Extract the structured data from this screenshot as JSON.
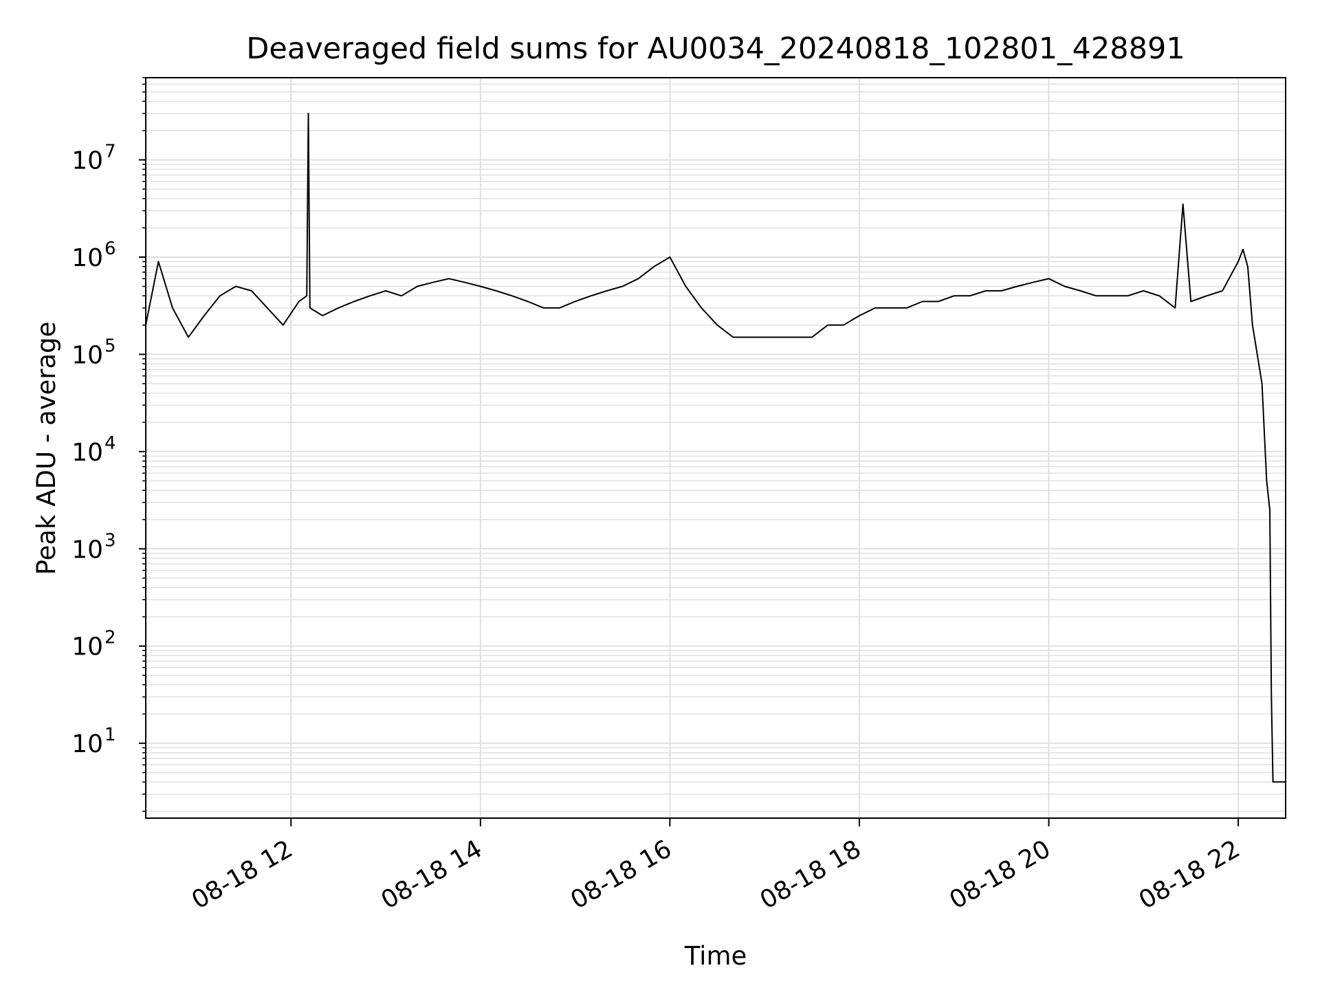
{
  "chart_data": {
    "type": "line",
    "title": "Deaveraged field sums for AU0034_20240818_102801_428891",
    "xlabel": "Time",
    "ylabel": "Peak ADU - average",
    "yscale": "log",
    "grid": true,
    "legend": "none",
    "line_color": "#000000",
    "grid_color": "#e0e0e0",
    "xlim": [
      "08-18 10:28",
      "08-18 22:30"
    ],
    "ylim": [
      1.7,
      70000000
    ],
    "x_ticks": [
      {
        "time": "08-18 12:00",
        "label": "08-18 12"
      },
      {
        "time": "08-18 14:00",
        "label": "08-18 14"
      },
      {
        "time": "08-18 16:00",
        "label": "08-18 16"
      },
      {
        "time": "08-18 18:00",
        "label": "08-18 18"
      },
      {
        "time": "08-18 20:00",
        "label": "08-18 20"
      },
      {
        "time": "08-18 22:00",
        "label": "08-18 22"
      }
    ],
    "y_ticks": [
      {
        "value": 10,
        "base": "10",
        "exp": "1"
      },
      {
        "value": 100,
        "base": "10",
        "exp": "2"
      },
      {
        "value": 1000,
        "base": "10",
        "exp": "3"
      },
      {
        "value": 10000,
        "base": "10",
        "exp": "4"
      },
      {
        "value": 100000,
        "base": "10",
        "exp": "5"
      },
      {
        "value": 1000000,
        "base": "10",
        "exp": "6"
      },
      {
        "value": 10000000,
        "base": "10",
        "exp": "7"
      }
    ],
    "series": [
      {
        "x": [
          "08-18 10:28",
          "08-18 10:36",
          "08-18 10:45",
          "08-18 10:55",
          "08-18 11:05",
          "08-18 11:15",
          "08-18 11:25",
          "08-18 11:35",
          "08-18 11:45",
          "08-18 11:55",
          "08-18 12:05",
          "08-18 12:10",
          "08-18 12:11",
          "08-18 12:12",
          "08-18 12:20",
          "08-18 12:30",
          "08-18 12:40",
          "08-18 12:50",
          "08-18 13:00",
          "08-18 13:10",
          "08-18 13:20",
          "08-18 13:30",
          "08-18 13:40",
          "08-18 13:50",
          "08-18 14:00",
          "08-18 14:10",
          "08-18 14:20",
          "08-18 14:30",
          "08-18 14:40",
          "08-18 14:50",
          "08-18 15:00",
          "08-18 15:10",
          "08-18 15:20",
          "08-18 15:30",
          "08-18 15:40",
          "08-18 15:50",
          "08-18 16:00",
          "08-18 16:10",
          "08-18 16:20",
          "08-18 16:30",
          "08-18 16:40",
          "08-18 16:50",
          "08-18 17:00",
          "08-18 17:10",
          "08-18 17:20",
          "08-18 17:30",
          "08-18 17:40",
          "08-18 17:50",
          "08-18 18:00",
          "08-18 18:10",
          "08-18 18:20",
          "08-18 18:30",
          "08-18 18:40",
          "08-18 18:50",
          "08-18 19:00",
          "08-18 19:10",
          "08-18 19:20",
          "08-18 19:30",
          "08-18 19:40",
          "08-18 19:50",
          "08-18 20:00",
          "08-18 20:10",
          "08-18 20:20",
          "08-18 20:30",
          "08-18 20:40",
          "08-18 20:50",
          "08-18 21:00",
          "08-18 21:10",
          "08-18 21:20",
          "08-18 21:25",
          "08-18 21:30",
          "08-18 21:40",
          "08-18 21:50",
          "08-18 22:00",
          "08-18 22:03",
          "08-18 22:06",
          "08-18 22:09",
          "08-18 22:12",
          "08-18 22:15",
          "08-18 22:18",
          "08-18 22:20",
          "08-18 22:21",
          "08-18 22:22",
          "08-18 22:23",
          "08-18 22:25",
          "08-18 22:27",
          "08-18 22:30"
        ],
        "y": [
          200000,
          900000,
          300000,
          150000,
          250000,
          400000,
          500000,
          450000,
          300000,
          200000,
          350000,
          400000,
          30000000,
          300000,
          250000,
          300000,
          350000,
          400000,
          450000,
          400000,
          500000,
          550000,
          600000,
          550000,
          500000,
          450000,
          400000,
          350000,
          300000,
          300000,
          350000,
          400000,
          450000,
          500000,
          600000,
          800000,
          1000000,
          500000,
          300000,
          200000,
          150000,
          150000,
          150000,
          150000,
          150000,
          150000,
          200000,
          200000,
          250000,
          300000,
          300000,
          300000,
          350000,
          350000,
          400000,
          400000,
          450000,
          450000,
          500000,
          550000,
          600000,
          500000,
          450000,
          400000,
          400000,
          400000,
          450000,
          400000,
          300000,
          3500000,
          350000,
          400000,
          450000,
          900000,
          1200000,
          800000,
          200000,
          100000,
          50000,
          5000,
          2500,
          30,
          4,
          4,
          4,
          4,
          4
        ]
      }
    ]
  }
}
